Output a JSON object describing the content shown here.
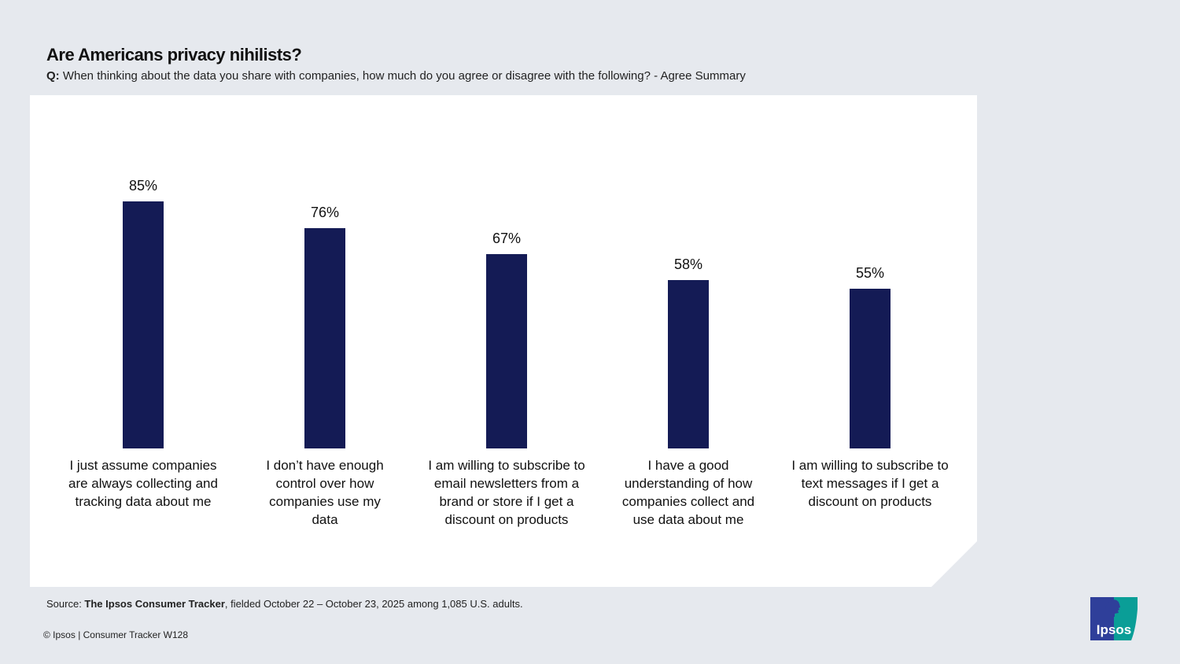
{
  "title": "Are Americans privacy nihilists?",
  "subtitle_prefix": "Q:",
  "subtitle": "When thinking about the data you share with companies, how much do you agree or disagree with the following? - Agree Summary",
  "chart_data": {
    "type": "bar",
    "categories": [
      "I just assume companies are always collecting and tracking data about me",
      "I don’t have enough control over how companies use my data",
      "I am willing to subscribe to email newsletters from a brand or store if I get a discount on products",
      "I have a good understanding of how companies collect and use data about me",
      "I am willing to subscribe to text messages if I get a discount on products"
    ],
    "values": [
      85,
      76,
      67,
      58,
      55
    ],
    "data_labels": [
      "85%",
      "76%",
      "67%",
      "58%",
      "55%"
    ],
    "ylim": [
      0,
      100
    ],
    "grid": false,
    "color": "#141b55"
  },
  "footer": {
    "source_prefix": "Source: ",
    "source_bold": "The Ipsos Consumer Tracker",
    "source_rest": ", fielded October 22 – October 23, 2025 among 1,085 U.S. adults.",
    "copyright": "© Ipsos | Consumer Tracker W128",
    "logo_text": "Ipsos"
  }
}
